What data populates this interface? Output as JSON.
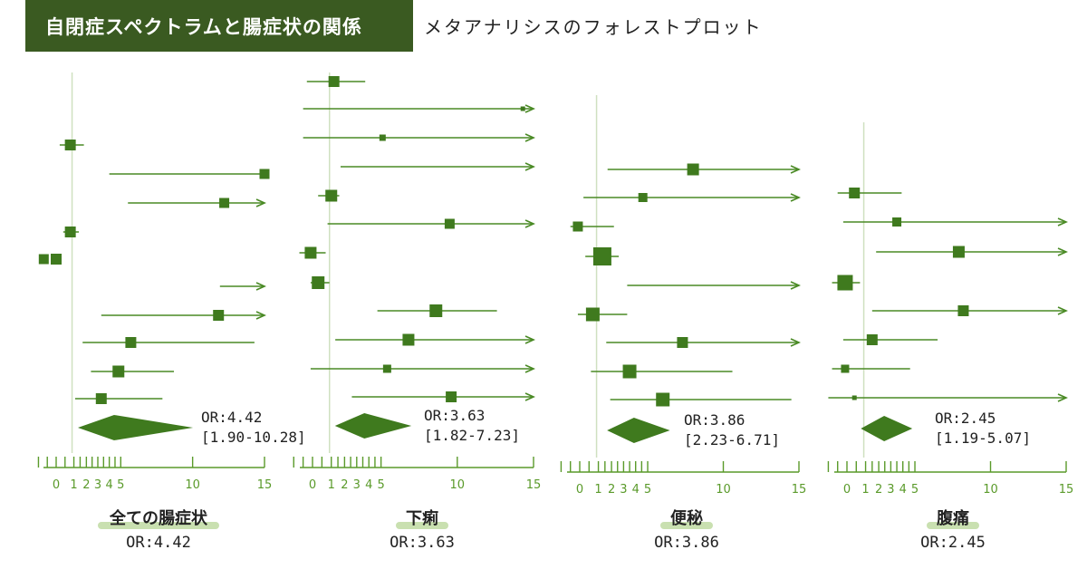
{
  "header": {
    "title": "自閉症スペクトラムと腸症状の関係",
    "subtitle": "メタアナリシスのフォレストプロット"
  },
  "colors": {
    "title_bg": "#3a5a21",
    "marker": "#3f7a1e",
    "line": "#4a8a25",
    "axis": "#5a9a2a",
    "label_highlight": "#c9e0b0",
    "ref_line": "#cfe0c0"
  },
  "chart_data": [
    {
      "type": "forest",
      "panel_label": "全ての腸症状",
      "pooled_label": "OR:4.42",
      "pooled": {
        "or": 4.42,
        "ci_low": 1.9,
        "ci_high": 10.28,
        "or_text": "OR:4.42",
        "ci_text": "[1.90-10.28]"
      },
      "xlim": [
        0,
        15
      ],
      "xticks": [
        "0",
        "1",
        "2",
        "3",
        "4",
        "5",
        "10",
        "15"
      ],
      "studies": [
        {
          "or": 0.0,
          "low": null,
          "high": null,
          "w": 12
        },
        {
          "or": 0.8,
          "low": 0.2,
          "high": 1.8,
          "w": 12
        },
        {
          "or": 15,
          "low": 4.0,
          "high": 15,
          "arrow": false,
          "w": 11
        },
        {
          "or": 12.2,
          "low": 5.5,
          "high": 15,
          "arrow": true,
          "w": 11
        },
        {
          "or": 0.8,
          "low": 0.4,
          "high": 1.4,
          "w": 12
        },
        {
          "or": -0.7,
          "low": null,
          "high": null,
          "w": 11
        },
        {
          "or": null,
          "low": 11.9,
          "high": 15,
          "arrow": true,
          "w": 0
        },
        {
          "or": 11.8,
          "low": 3.3,
          "high": 15,
          "arrow": true,
          "w": 12
        },
        {
          "or": 5.7,
          "low": 1.7,
          "high": 14.3,
          "w": 12
        },
        {
          "or": 4.8,
          "low": 2.4,
          "high": 8.7,
          "w": 13
        },
        {
          "or": 3.3,
          "low": 1.1,
          "high": 7.9,
          "w": 12
        }
      ]
    },
    {
      "type": "forest",
      "panel_label": "下痢",
      "pooled_label": "OR:3.63",
      "pooled": {
        "or": 3.63,
        "ci_low": 1.82,
        "ci_high": 7.23,
        "or_text": "OR:3.63",
        "ci_text": "[1.82-7.23]"
      },
      "xlim": [
        0,
        15
      ],
      "xticks": [
        "0",
        "1",
        "2",
        "3",
        "4",
        "5",
        "10",
        "15"
      ],
      "studies": [
        {
          "or": 1.2,
          "low": -0.3,
          "high": 3.7,
          "w": 12
        },
        {
          "or": 14.3,
          "low": -0.5,
          "high": 15,
          "arrow": true,
          "w": 5
        },
        {
          "or": 5.1,
          "low": -0.5,
          "high": 15,
          "arrow": true,
          "w": 7
        },
        {
          "or": null,
          "low": 1.7,
          "high": 15,
          "arrow": true,
          "w": 0
        },
        {
          "or": 1.0,
          "low": 0.3,
          "high": 1.6,
          "w": 13
        },
        {
          "or": 9.5,
          "low": 0.8,
          "high": 15,
          "arrow": true,
          "w": 11
        },
        {
          "or": -0.1,
          "low": -0.7,
          "high": 0.7,
          "w": 13
        },
        {
          "or": 0.3,
          "low": -0.1,
          "high": 0.9,
          "w": 14
        },
        {
          "or": 8.6,
          "low": 4.7,
          "high": 12.6,
          "w": 14
        },
        {
          "or": 6.8,
          "low": 1.3,
          "high": 15,
          "arrow": true,
          "w": 13
        },
        {
          "or": 5.4,
          "low": -0.1,
          "high": 15,
          "arrow": true,
          "w": 9
        },
        {
          "or": 9.6,
          "low": 2.6,
          "high": 15,
          "arrow": true,
          "w": 12
        }
      ]
    },
    {
      "type": "forest",
      "panel_label": "便秘",
      "pooled_label": "OR:3.86",
      "pooled": {
        "or": 3.86,
        "ci_low": 2.23,
        "ci_high": 6.71,
        "or_text": "OR:3.86",
        "ci_text": "[2.23-6.71]"
      },
      "xlim": [
        0,
        15
      ],
      "xticks": [
        "0",
        "1",
        "2",
        "3",
        "4",
        "5",
        "10",
        "15"
      ],
      "studies": [
        {
          "or": 8.0,
          "low": 1.7,
          "high": 15,
          "arrow": true,
          "w": 13
        },
        {
          "or": 4.6,
          "low": 0.2,
          "high": 15,
          "arrow": true,
          "w": 10
        },
        {
          "or": -0.1,
          "low": -0.5,
          "high": 2.2,
          "w": 11
        },
        {
          "or": 1.3,
          "low": 0.3,
          "high": 2.6,
          "w": 20
        },
        {
          "or": null,
          "low": 3.3,
          "high": 15,
          "arrow": true,
          "w": 0
        },
        {
          "or": 0.7,
          "low": -0.1,
          "high": 3.3,
          "w": 15
        },
        {
          "or": 7.3,
          "low": 1.6,
          "high": 15,
          "arrow": true,
          "w": 12
        },
        {
          "or": 3.5,
          "low": 0.6,
          "high": 10.6,
          "w": 15
        },
        {
          "or": 6.0,
          "low": 1.9,
          "high": 14.5,
          "w": 15
        }
      ]
    },
    {
      "type": "forest",
      "panel_label": "腹痛",
      "pooled_label": "OR:2.45",
      "pooled": {
        "or": 2.45,
        "ci_low": 1.19,
        "ci_high": 5.07,
        "or_text": "OR:2.45",
        "ci_text": "[1.19-5.07]"
      },
      "xlim": [
        0,
        15
      ],
      "xticks": [
        "0",
        "1",
        "2",
        "3",
        "4",
        "5",
        "10",
        "15"
      ],
      "studies": [
        {
          "or": 0.4,
          "low": -0.5,
          "high": 3.9,
          "w": 12
        },
        {
          "or": 3.5,
          "low": -0.2,
          "high": 15,
          "arrow": true,
          "w": 10
        },
        {
          "or": 7.9,
          "low": 1.8,
          "high": 15,
          "arrow": true,
          "w": 13
        },
        {
          "or": -0.1,
          "low": -0.8,
          "high": 0.7,
          "w": 17
        },
        {
          "or": 8.2,
          "low": 1.5,
          "high": 15,
          "arrow": true,
          "w": 12
        },
        {
          "or": 1.5,
          "low": -0.2,
          "high": 6.5,
          "w": 12
        },
        {
          "or": -0.1,
          "low": -0.8,
          "high": 4.6,
          "w": 9
        },
        {
          "or": 0.4,
          "low": -1.0,
          "high": 15,
          "arrow": true,
          "w": 5
        }
      ]
    }
  ]
}
